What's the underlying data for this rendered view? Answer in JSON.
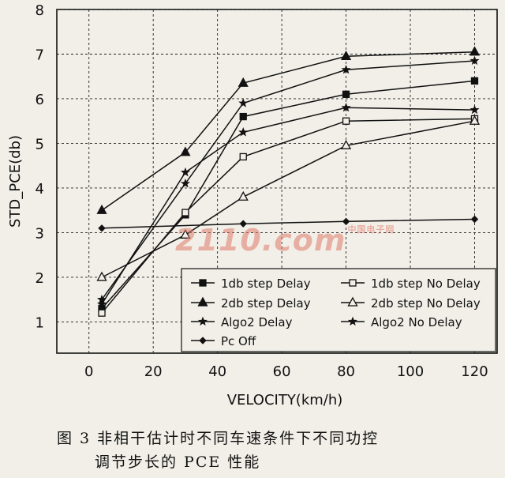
{
  "chart_data": {
    "type": "line",
    "xlabel": "VELOCITY(km/h)",
    "ylabel": "STD_PCE(db)",
    "xlim": [
      -10,
      127
    ],
    "ylim": [
      0.3,
      8
    ],
    "xticks": [
      0,
      20,
      40,
      60,
      80,
      100,
      120
    ],
    "yticks": [
      1,
      2,
      3,
      4,
      5,
      6,
      7,
      8
    ],
    "grid": true,
    "legend_position": "bottom-right",
    "series": [
      {
        "name": "1db step Delay",
        "marker": "square-filled",
        "x": [
          4,
          30,
          48,
          80,
          120
        ],
        "y": [
          1.3,
          3.4,
          5.6,
          6.1,
          6.4
        ]
      },
      {
        "name": "1db step No Delay",
        "marker": "square-open",
        "x": [
          4,
          30,
          48,
          80,
          120
        ],
        "y": [
          1.2,
          3.45,
          4.7,
          5.5,
          5.55
        ]
      },
      {
        "name": "2db step Delay",
        "marker": "triangle-filled",
        "x": [
          4,
          30,
          48,
          80,
          120
        ],
        "y": [
          3.5,
          4.8,
          6.35,
          6.95,
          7.05
        ]
      },
      {
        "name": "2db step No Delay",
        "marker": "triangle-open",
        "x": [
          4,
          30,
          48,
          80,
          120
        ],
        "y": [
          2.0,
          2.95,
          3.8,
          4.95,
          5.5
        ]
      },
      {
        "name": "Algo2 Delay",
        "marker": "star",
        "x": [
          4,
          30,
          48,
          80,
          120
        ],
        "y": [
          1.5,
          4.1,
          5.9,
          6.65,
          6.85
        ]
      },
      {
        "name": "Algo2 No Delay",
        "marker": "star",
        "x": [
          4,
          30,
          48,
          80,
          120
        ],
        "y": [
          1.4,
          4.35,
          5.25,
          5.8,
          5.75
        ]
      },
      {
        "name": "Pc Off",
        "marker": "diamond-filled",
        "x": [
          4,
          48,
          80,
          120
        ],
        "y": [
          3.1,
          3.2,
          3.25,
          3.3
        ]
      }
    ]
  },
  "caption": {
    "line1": "图 3  非相干估计时不同车速条件下不同功控",
    "line2": "调节步长的 PCE 性能"
  },
  "watermark": {
    "text": "2110.com",
    "small": "中国电子网"
  },
  "colors": {
    "background": "#f1efe8",
    "line": "#111111",
    "watermark": "#e07a6a"
  }
}
